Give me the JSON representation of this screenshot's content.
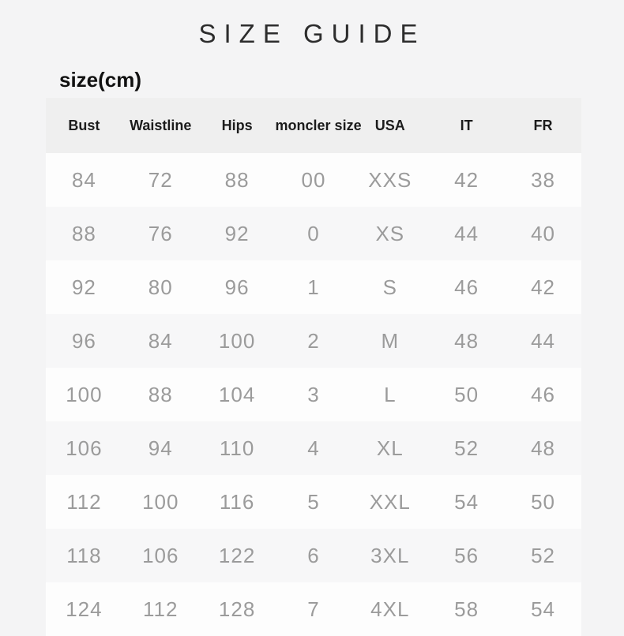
{
  "page": {
    "title": "SIZE GUIDE",
    "unit_label": "size(cm)"
  },
  "colors": {
    "page_bg": "#f4f4f5",
    "header_bg": "#efefef",
    "row_odd": "#fdfdfd",
    "row_even": "#f7f7f8",
    "title_text": "#2d2d2d",
    "label_text": "#111111",
    "header_text": "#1c1c1c",
    "data_text": "#9b9b9b"
  },
  "table": {
    "columns": [
      "Bust",
      "Waistline",
      "Hips",
      "moncler size",
      "USA",
      "IT",
      "FR"
    ],
    "rows": [
      [
        "84",
        "72",
        "88",
        "00",
        "XXS",
        "42",
        "38"
      ],
      [
        "88",
        "76",
        "92",
        "0",
        "XS",
        "44",
        "40"
      ],
      [
        "92",
        "80",
        "96",
        "1",
        "S",
        "46",
        "42"
      ],
      [
        "96",
        "84",
        "100",
        "2",
        "M",
        "48",
        "44"
      ],
      [
        "100",
        "88",
        "104",
        "3",
        "L",
        "50",
        "46"
      ],
      [
        "106",
        "94",
        "110",
        "4",
        "XL",
        "52",
        "48"
      ],
      [
        "112",
        "100",
        "116",
        "5",
        "XXL",
        "54",
        "50"
      ],
      [
        "118",
        "106",
        "122",
        "6",
        "3XL",
        "56",
        "52"
      ],
      [
        "124",
        "112",
        "128",
        "7",
        "4XL",
        "58",
        "54"
      ]
    ]
  }
}
